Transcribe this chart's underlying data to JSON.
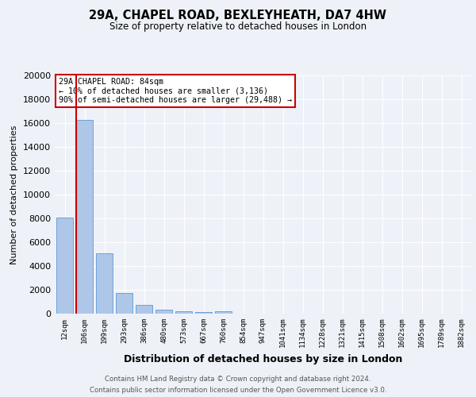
{
  "title1": "29A, CHAPEL ROAD, BEXLEYHEATH, DA7 4HW",
  "title2": "Size of property relative to detached houses in London",
  "xlabel": "Distribution of detached houses by size in London",
  "ylabel": "Number of detached properties",
  "categories": [
    "12sqm",
    "106sqm",
    "199sqm",
    "293sqm",
    "386sqm",
    "480sqm",
    "573sqm",
    "667sqm",
    "760sqm",
    "854sqm",
    "947sqm",
    "1041sqm",
    "1134sqm",
    "1228sqm",
    "1321sqm",
    "1415sqm",
    "1508sqm",
    "1602sqm",
    "1695sqm",
    "1789sqm",
    "1882sqm"
  ],
  "values": [
    8050,
    16300,
    5100,
    1750,
    750,
    350,
    200,
    150,
    200,
    0,
    0,
    0,
    0,
    0,
    0,
    0,
    0,
    0,
    0,
    0,
    0
  ],
  "bar_color": "#aec6e8",
  "bar_edge_color": "#5b9bd5",
  "vline_color": "#cc0000",
  "annotation_title": "29A CHAPEL ROAD: 84sqm",
  "annotation_line1": "← 10% of detached houses are smaller (3,136)",
  "annotation_line2": "90% of semi-detached houses are larger (29,488) →",
  "annotation_box_facecolor": "#ffffff",
  "annotation_box_edgecolor": "#cc0000",
  "ylim": [
    0,
    20000
  ],
  "yticks": [
    0,
    2000,
    4000,
    6000,
    8000,
    10000,
    12000,
    14000,
    16000,
    18000,
    20000
  ],
  "footer1": "Contains HM Land Registry data © Crown copyright and database right 2024.",
  "footer2": "Contains public sector information licensed under the Open Government Licence v3.0.",
  "bg_color": "#eef2f8",
  "grid_color": "#ffffff"
}
